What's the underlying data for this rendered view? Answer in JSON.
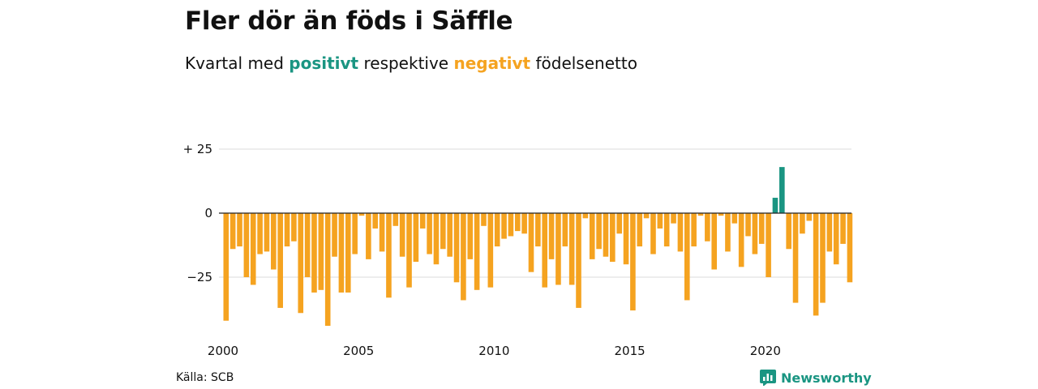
{
  "title": "Fler dör än föds i Säffle",
  "subtitle": {
    "prefix": "Kvartal med ",
    "positive": "positivt",
    "middle": " respektive ",
    "negative": "negativt",
    "suffix": " födelsenetto"
  },
  "source": "Källa: SCB",
  "brand": "Newsworthy",
  "colors": {
    "positive": "#1a9582",
    "negative": "#f5a320",
    "grid": "#e2e2e2",
    "axis": "#222222"
  },
  "chart_data": {
    "type": "bar",
    "x_start": "2000 Q1",
    "frequency": "quarterly",
    "y_ticks": [
      {
        "value": 25,
        "label": "+ 25"
      },
      {
        "value": 0,
        "label": "0"
      },
      {
        "value": -25,
        "label": "−25"
      }
    ],
    "x_ticks": [
      {
        "year": 2000,
        "label": "2000"
      },
      {
        "year": 2005,
        "label": "2005"
      },
      {
        "year": 2010,
        "label": "2010"
      },
      {
        "year": 2015,
        "label": "2015"
      },
      {
        "year": 2020,
        "label": "2020"
      }
    ],
    "ylim": [
      -45,
      30
    ],
    "values": [
      -42,
      -14,
      -13,
      -25,
      -28,
      -16,
      -15,
      -22,
      -37,
      -13,
      -11,
      -39,
      -25,
      -31,
      -30,
      -44,
      -17,
      -31,
      -31,
      -16,
      -1,
      -18,
      -6,
      -15,
      -33,
      -5,
      -17,
      -29,
      -19,
      -6,
      -16,
      -20,
      -14,
      -17,
      -27,
      -34,
      -18,
      -30,
      -5,
      -29,
      -13,
      -10,
      -9,
      -7,
      -8,
      -23,
      -13,
      -29,
      -18,
      -28,
      -13,
      -28,
      -37,
      -2,
      -18,
      -14,
      -17,
      -19,
      -8,
      -20,
      -38,
      -13,
      -2,
      -16,
      -6,
      -13,
      -4,
      -15,
      -34,
      -13,
      -1,
      -11,
      -22,
      -1,
      -15,
      -4,
      -21,
      -9,
      -16,
      -12,
      -25,
      6,
      18,
      -14,
      -35,
      -8,
      -3,
      -40,
      -35,
      -15,
      -20,
      -12,
      -27
    ]
  }
}
